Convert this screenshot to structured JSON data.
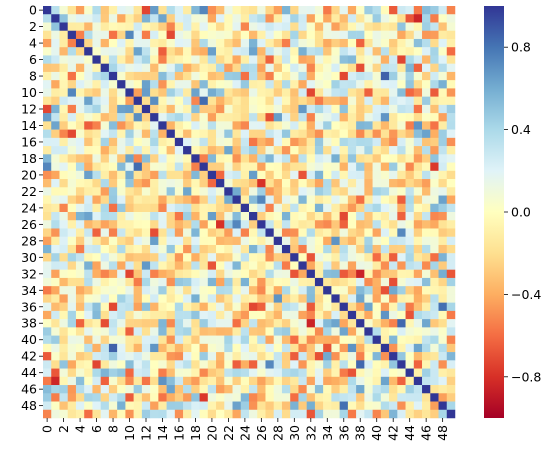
{
  "chart_data": {
    "type": "heatmap",
    "title": "",
    "xlabel": "",
    "ylabel": "",
    "n": 50,
    "x_tick_labels": [
      "0",
      "2",
      "4",
      "6",
      "8",
      "10",
      "12",
      "14",
      "16",
      "18",
      "20",
      "22",
      "24",
      "26",
      "28",
      "30",
      "32",
      "34",
      "36",
      "38",
      "40",
      "42",
      "44",
      "46",
      "48"
    ],
    "y_tick_labels": [
      "0",
      "2",
      "4",
      "6",
      "8",
      "10",
      "12",
      "14",
      "16",
      "18",
      "20",
      "22",
      "24",
      "26",
      "28",
      "30",
      "32",
      "34",
      "36",
      "38",
      "40",
      "42",
      "44",
      "46",
      "48"
    ],
    "colorbar": {
      "vmin": -1.0,
      "vmax": 1.0,
      "tick_values": [
        0.8,
        0.4,
        0.0,
        -0.4,
        -0.8
      ],
      "tick_labels": [
        "0.8",
        "0.4",
        "0.0",
        "−0.4",
        "−0.8"
      ],
      "colormap": "RdYlBu",
      "colors": [
        "#a50026",
        "#d73027",
        "#f46d43",
        "#fdae61",
        "#fee090",
        "#ffffbf",
        "#e0f3f8",
        "#abd9e9",
        "#74add1",
        "#4575b4",
        "#313695"
      ]
    },
    "diagonal_value": 1.0,
    "values_note_seed": 20240611
  }
}
